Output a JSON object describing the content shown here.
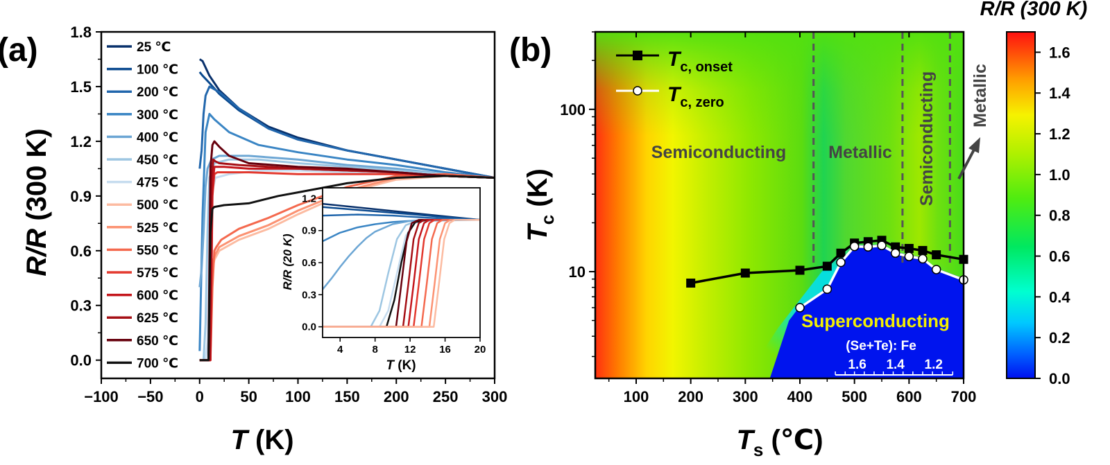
{
  "panel_labels": {
    "a": "(a)",
    "b": "(b)"
  },
  "chart_data": [
    {
      "id": "a",
      "type": "line",
      "xlabel_sym": "T",
      "xlabel_unit": " (K)",
      "ylabel_sym": "R/R",
      "ylabel_unit": " (300 K)",
      "xlim": [
        -100,
        300
      ],
      "ylim": [
        -0.1,
        1.8
      ],
      "xticks": [
        -100,
        -50,
        0,
        50,
        100,
        150,
        200,
        250,
        300
      ],
      "xtick_labels": [
        "−100",
        "−50",
        "0",
        "50",
        "100",
        "150",
        "200",
        "250",
        "300"
      ],
      "yticks": [
        0.0,
        0.3,
        0.6,
        0.9,
        1.2,
        1.5,
        1.8
      ],
      "ytick_labels": [
        "0.0",
        "0.3",
        "0.6",
        "0.9",
        "1.2",
        "1.5",
        "1.8"
      ],
      "series": [
        {
          "name": "25 ℃",
          "color": "#08306b",
          "x": [
            0,
            3,
            10,
            20,
            40,
            70,
            100,
            150,
            200,
            250,
            300
          ],
          "y": [
            1.65,
            1.64,
            1.56,
            1.48,
            1.38,
            1.28,
            1.22,
            1.15,
            1.1,
            1.05,
            1.0
          ]
        },
        {
          "name": "100 ℃",
          "color": "#0b4a8f",
          "x": [
            0,
            3,
            10,
            20,
            40,
            70,
            100,
            150,
            200,
            250,
            300
          ],
          "y": [
            1.58,
            1.56,
            1.52,
            1.46,
            1.37,
            1.27,
            1.21,
            1.15,
            1.1,
            1.05,
            1.0
          ]
        },
        {
          "name": "200 ℃",
          "color": "#2166ac",
          "x": [
            0,
            2,
            4,
            6,
            10,
            20,
            40,
            70,
            100,
            150,
            200,
            250,
            300
          ],
          "y": [
            1.05,
            1.15,
            1.35,
            1.45,
            1.5,
            1.47,
            1.38,
            1.27,
            1.21,
            1.15,
            1.1,
            1.05,
            1.0
          ]
        },
        {
          "name": "300 ℃",
          "color": "#3a85c4",
          "x": [
            0,
            3,
            6,
            10,
            15,
            30,
            60,
            100,
            150,
            200,
            250,
            300
          ],
          "y": [
            0.05,
            0.8,
            1.25,
            1.35,
            1.32,
            1.25,
            1.18,
            1.14,
            1.1,
            1.07,
            1.03,
            1.0
          ]
        },
        {
          "name": "400 ℃",
          "color": "#6ca6d4",
          "x": [
            0,
            2,
            4,
            6,
            8,
            12,
            20,
            50,
            100,
            150,
            200,
            250,
            300
          ],
          "y": [
            0.4,
            0.5,
            0.7,
            0.95,
            1.05,
            1.1,
            1.12,
            1.12,
            1.1,
            1.07,
            1.05,
            1.02,
            1.0
          ]
        },
        {
          "name": "450 ℃",
          "color": "#9dc6e2",
          "x": [
            0,
            4,
            6,
            8,
            10,
            15,
            30,
            60,
            100,
            200,
            300
          ],
          "y": [
            0.0,
            0.0,
            0.2,
            0.7,
            1.0,
            1.08,
            1.1,
            1.1,
            1.08,
            1.04,
            1.0
          ]
        },
        {
          "name": "475 ℃",
          "color": "#c6dcef",
          "x": [
            0,
            6,
            8,
            10,
            12,
            16,
            30,
            60,
            100,
            200,
            300
          ],
          "y": [
            0.0,
            0.0,
            0.1,
            0.6,
            0.9,
            1.0,
            1.02,
            1.04,
            1.04,
            1.02,
            1.0
          ]
        },
        {
          "name": "500 ℃",
          "color": "#fcbba1",
          "x": [
            0,
            9,
            11,
            13,
            15,
            20,
            40,
            70,
            100,
            150,
            200,
            250,
            300
          ],
          "y": [
            0.0,
            0.0,
            0.3,
            0.5,
            0.55,
            0.6,
            0.66,
            0.72,
            0.8,
            0.92,
            0.99,
            1.01,
            1.0
          ]
        },
        {
          "name": "525 ℃",
          "color": "#fc9272",
          "x": [
            0,
            10,
            12,
            14,
            16,
            20,
            40,
            70,
            100,
            150,
            200,
            250,
            300
          ],
          "y": [
            0.0,
            0.0,
            0.35,
            0.55,
            0.58,
            0.62,
            0.68,
            0.74,
            0.82,
            0.93,
            1.0,
            1.01,
            1.0
          ]
        },
        {
          "name": "550 ℃",
          "color": "#f4694e",
          "x": [
            0,
            11,
            13,
            15,
            17,
            22,
            40,
            70,
            100,
            150,
            200,
            250,
            300
          ],
          "y": [
            0.0,
            0.0,
            0.4,
            0.6,
            0.62,
            0.66,
            0.72,
            0.78,
            0.85,
            0.95,
            1.01,
            1.02,
            1.0
          ]
        },
        {
          "name": "575 ℃",
          "color": "#e3392e",
          "x": [
            0,
            11,
            13,
            15,
            18,
            25,
            50,
            100,
            150,
            200,
            250,
            300
          ],
          "y": [
            0.0,
            0.0,
            0.9,
            1.02,
            1.03,
            1.03,
            1.03,
            1.02,
            1.02,
            1.02,
            1.01,
            1.0
          ]
        },
        {
          "name": "600 ℃",
          "color": "#c4161c",
          "x": [
            0,
            11,
            13,
            15,
            18,
            25,
            50,
            100,
            150,
            200,
            250,
            300
          ],
          "y": [
            0.0,
            0.0,
            0.95,
            1.06,
            1.06,
            1.06,
            1.05,
            1.05,
            1.04,
            1.03,
            1.01,
            1.0
          ]
        },
        {
          "name": "625 ℃",
          "color": "#a50f15",
          "x": [
            0,
            10,
            12,
            14,
            16,
            20,
            40,
            70,
            100,
            150,
            200,
            250,
            300
          ],
          "y": [
            0.0,
            0.0,
            1.0,
            1.1,
            1.09,
            1.08,
            1.07,
            1.06,
            1.05,
            1.04,
            1.03,
            1.01,
            1.0
          ]
        },
        {
          "name": "650 ℃",
          "color": "#67000d",
          "x": [
            0,
            9,
            11,
            13,
            15,
            20,
            30,
            50,
            100,
            150,
            200,
            250,
            300
          ],
          "y": [
            0.0,
            0.0,
            1.05,
            1.18,
            1.2,
            1.17,
            1.12,
            1.08,
            1.06,
            1.05,
            1.03,
            1.01,
            1.0
          ]
        },
        {
          "name": "700 ℃",
          "color": "#111111",
          "x": [
            0,
            9,
            11,
            13,
            15,
            25,
            50,
            80,
            100,
            150,
            200,
            250,
            300
          ],
          "y": [
            0.0,
            0.0,
            0.7,
            0.83,
            0.84,
            0.85,
            0.86,
            0.9,
            0.92,
            0.97,
            1.0,
            1.01,
            1.0
          ]
        }
      ],
      "inset": {
        "xlabel_sym": "T",
        "xlabel_unit": " (K)",
        "ylabel": "R/R (20 K)",
        "xlim": [
          2,
          20
        ],
        "ylim": [
          -0.1,
          1.3
        ],
        "xticks": [
          4,
          8,
          12,
          16,
          20
        ],
        "xtick_labels": [
          "4",
          "8",
          "12",
          "16",
          "20"
        ],
        "yticks": [
          0.0,
          0.3,
          0.6,
          0.9,
          1.2
        ],
        "ytick_labels": [
          "0.0",
          "0.3",
          "0.6",
          "0.9",
          "1.2"
        ],
        "series": [
          {
            "name": "25 ℃",
            "color": "#08306b",
            "x": [
              2,
              20
            ],
            "y": [
              1.15,
              1.0
            ]
          },
          {
            "name": "100 ℃",
            "color": "#0b4a8f",
            "x": [
              2,
              20
            ],
            "y": [
              1.12,
              1.0
            ]
          },
          {
            "name": "200 ℃",
            "color": "#2166ac",
            "x": [
              2,
              6,
              10,
              14,
              20
            ],
            "y": [
              1.04,
              1.05,
              1.04,
              1.02,
              1.0
            ]
          },
          {
            "name": "300 ℃",
            "color": "#3a85c4",
            "x": [
              2,
              4,
              6,
              8,
              10,
              12,
              14,
              20
            ],
            "y": [
              0.8,
              0.88,
              0.93,
              0.96,
              0.98,
              0.99,
              1.0,
              1.0
            ]
          },
          {
            "name": "400 ℃",
            "color": "#6ca6d4",
            "x": [
              2,
              3,
              4,
              5,
              6,
              7,
              8,
              10,
              12,
              20
            ],
            "y": [
              0.35,
              0.45,
              0.56,
              0.66,
              0.75,
              0.83,
              0.89,
              0.96,
              0.99,
              1.0
            ]
          },
          {
            "name": "450 ℃",
            "color": "#9dc6e2",
            "x": [
              2,
              7.5,
              8.5,
              9.5,
              10.5,
              11.5,
              13,
              20
            ],
            "y": [
              0.0,
              0.0,
              0.15,
              0.5,
              0.82,
              0.95,
              1.0,
              1.0
            ]
          },
          {
            "name": "475 ℃",
            "color": "#c6dcef",
            "x": [
              2,
              8.5,
              9.5,
              10.5,
              11.5,
              12.5,
              14,
              20
            ],
            "y": [
              0.0,
              0.0,
              0.15,
              0.5,
              0.85,
              0.97,
              1.0,
              1.0
            ]
          },
          {
            "name": "700 ℃",
            "color": "#111111",
            "x": [
              2,
              9.3,
              10.2,
              11,
              11.8,
              12.6,
              14,
              20
            ],
            "y": [
              0.0,
              0.0,
              0.25,
              0.6,
              0.88,
              0.98,
              1.0,
              1.0
            ]
          },
          {
            "name": "650 ℃",
            "color": "#67000d",
            "x": [
              2,
              10.4,
              11,
              11.6,
              12.2,
              13,
              20
            ],
            "y": [
              0.0,
              0.0,
              0.4,
              0.8,
              0.97,
              1.0,
              1.0
            ]
          },
          {
            "name": "625 ℃",
            "color": "#a50f15",
            "x": [
              2,
              11.2,
              11.8,
              12.4,
              13,
              13.6,
              20
            ],
            "y": [
              0.0,
              0.0,
              0.4,
              0.82,
              0.97,
              1.0,
              1.0
            ]
          },
          {
            "name": "600 ℃",
            "color": "#c4161c",
            "x": [
              2,
              11.8,
              12.4,
              13,
              13.6,
              14.2,
              20
            ],
            "y": [
              0.0,
              0.0,
              0.4,
              0.82,
              0.97,
              1.0,
              1.0
            ]
          },
          {
            "name": "575 ℃",
            "color": "#e3392e",
            "x": [
              2,
              12.4,
              13,
              13.6,
              14.2,
              14.8,
              20
            ],
            "y": [
              0.0,
              0.0,
              0.4,
              0.82,
              0.97,
              1.0,
              1.0
            ]
          },
          {
            "name": "550 ℃",
            "color": "#f4694e",
            "x": [
              2,
              13.3,
              13.9,
              14.5,
              15.1,
              15.7,
              20
            ],
            "y": [
              0.0,
              0.0,
              0.4,
              0.82,
              0.97,
              1.0,
              1.0
            ]
          },
          {
            "name": "525 ℃",
            "color": "#fc9272",
            "x": [
              2,
              14.2,
              14.8,
              15.4,
              16,
              16.6,
              20
            ],
            "y": [
              0.0,
              0.0,
              0.4,
              0.82,
              0.97,
              1.0,
              1.0
            ]
          },
          {
            "name": "500 ℃",
            "color": "#fcbba1",
            "x": [
              2,
              14.7,
              15.3,
              15.9,
              16.5,
              17.1,
              20
            ],
            "y": [
              0.0,
              0.0,
              0.4,
              0.82,
              0.97,
              1.0,
              1.0
            ]
          }
        ]
      }
    },
    {
      "id": "b",
      "type": "heatmap",
      "xlabel_sym": "T",
      "xlabel_sub": "s",
      "xlabel_unit": " (℃)",
      "ylabel_sym": "T",
      "ylabel_sub": "c",
      "ylabel_unit": " (K)",
      "xlim": [
        25,
        700
      ],
      "ylim_log": [
        2.2,
        300
      ],
      "xticks": [
        100,
        200,
        300,
        400,
        500,
        600,
        700
      ],
      "xtick_labels": [
        "100",
        "200",
        "300",
        "400",
        "500",
        "600",
        "700"
      ],
      "yticks": [
        10,
        100
      ],
      "ytick_labels": [
        "10",
        "100"
      ],
      "colorbar": {
        "title": "R/R (300 K)",
        "range": [
          0.0,
          1.7
        ],
        "ticks": [
          0.0,
          0.2,
          0.4,
          0.6,
          0.8,
          1.0,
          1.2,
          1.4,
          1.6
        ],
        "tick_labels": [
          "0.0",
          "0.2",
          "0.4",
          "0.6",
          "0.8",
          "1.0",
          "1.2",
          "1.4",
          "1.6"
        ]
      },
      "region_boundaries_x": [
        425,
        588,
        675
      ],
      "regions": {
        "semi1": "Semiconducting",
        "metal1": "Metallic",
        "semi2": "Semiconducting",
        "metal2": "Metallic",
        "super": "Superconducting"
      },
      "series": [
        {
          "name": "T",
          "sub": "c, onset",
          "marker": "square",
          "color": "#000000",
          "x": [
            200,
            300,
            400,
            450,
            475,
            500,
            525,
            550,
            575,
            600,
            625,
            650,
            700
          ],
          "y": [
            8.5,
            9.8,
            10.2,
            10.8,
            13.0,
            15.0,
            15.3,
            15.6,
            14.2,
            13.9,
            13.5,
            12.7,
            11.9
          ]
        },
        {
          "name": "T",
          "sub": "c, zero",
          "marker": "circle",
          "color": "#ffffff",
          "x": [
            400,
            450,
            475,
            500,
            525,
            550,
            575,
            600,
            625,
            650,
            700
          ],
          "y": [
            6.0,
            7.8,
            11.4,
            14.3,
            14.2,
            14.5,
            13.0,
            12.4,
            12.0,
            10.3,
            8.9
          ]
        }
      ],
      "composition": {
        "label": "(Se+Te): Fe",
        "ratios": [
          "1.6",
          "1.4",
          "1.2"
        ]
      }
    }
  ]
}
